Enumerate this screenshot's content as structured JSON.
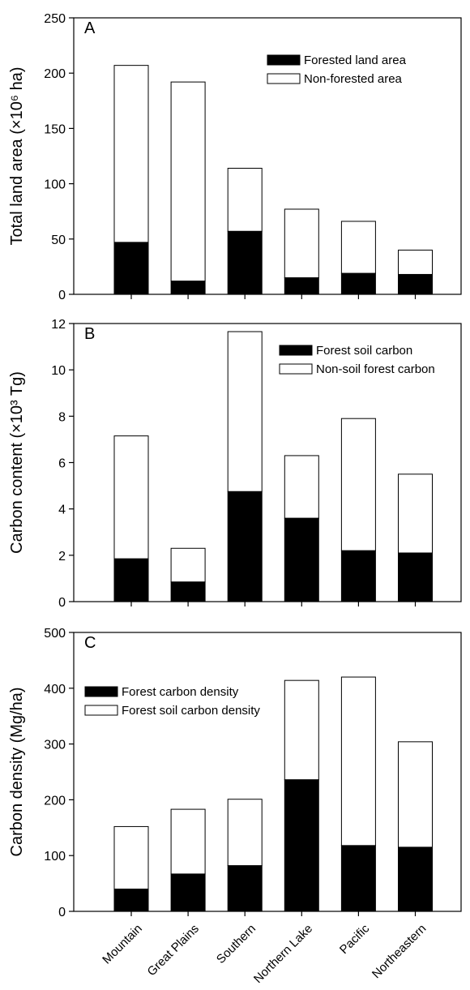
{
  "chart_data": [
    {
      "type": "bar",
      "stacked": true,
      "panel_label": "A",
      "ylabel": "Total land area (×10⁶ ha)",
      "ylim": [
        0,
        250
      ],
      "yticks": [
        0,
        50,
        100,
        150,
        200,
        250
      ],
      "categories": [
        "Mountain",
        "Great Plains",
        "Southern",
        "Northern Lake",
        "Pacific",
        "Northeastern"
      ],
      "series": [
        {
          "name": "Forested land area",
          "color": "#000000",
          "values": [
            47,
            12,
            57,
            15,
            19,
            18
          ]
        },
        {
          "name": "Non-forested area",
          "color": "#ffffff",
          "values": [
            160,
            180,
            57,
            62,
            47,
            22
          ]
        }
      ],
      "legend_position": "top-right"
    },
    {
      "type": "bar",
      "stacked": true,
      "panel_label": "B",
      "ylabel": "Carbon content (×10³ Tg)",
      "ylim": [
        0,
        12
      ],
      "yticks": [
        0,
        2,
        4,
        6,
        8,
        10,
        12
      ],
      "categories": [
        "Mountain",
        "Great Plains",
        "Southern",
        "Northern Lake",
        "Pacific",
        "Northeastern"
      ],
      "series": [
        {
          "name": "Forest soil carbon",
          "color": "#000000",
          "values": [
            1.85,
            0.85,
            4.75,
            3.6,
            2.2,
            2.1
          ]
        },
        {
          "name": "Non-soil forest carbon",
          "color": "#ffffff",
          "values": [
            5.3,
            1.45,
            6.9,
            2.7,
            5.7,
            3.4
          ]
        }
      ],
      "legend_position": "top-right"
    },
    {
      "type": "bar",
      "stacked": true,
      "panel_label": "C",
      "ylabel": "Carbon density (Mg/ha)",
      "ylim": [
        0,
        500
      ],
      "yticks": [
        0,
        100,
        200,
        300,
        400,
        500
      ],
      "categories": [
        "Mountain",
        "Great Plains",
        "Southern",
        "Northern Lake",
        "Pacific",
        "Northeastern"
      ],
      "series": [
        {
          "name": "Forest carbon density",
          "color": "#000000",
          "values": [
            40,
            67,
            82,
            236,
            118,
            115
          ]
        },
        {
          "name": "Forest soil carbon density",
          "color": "#ffffff",
          "values": [
            112,
            116,
            119,
            178,
            302,
            189
          ]
        }
      ],
      "legend_position": "top-left"
    }
  ]
}
